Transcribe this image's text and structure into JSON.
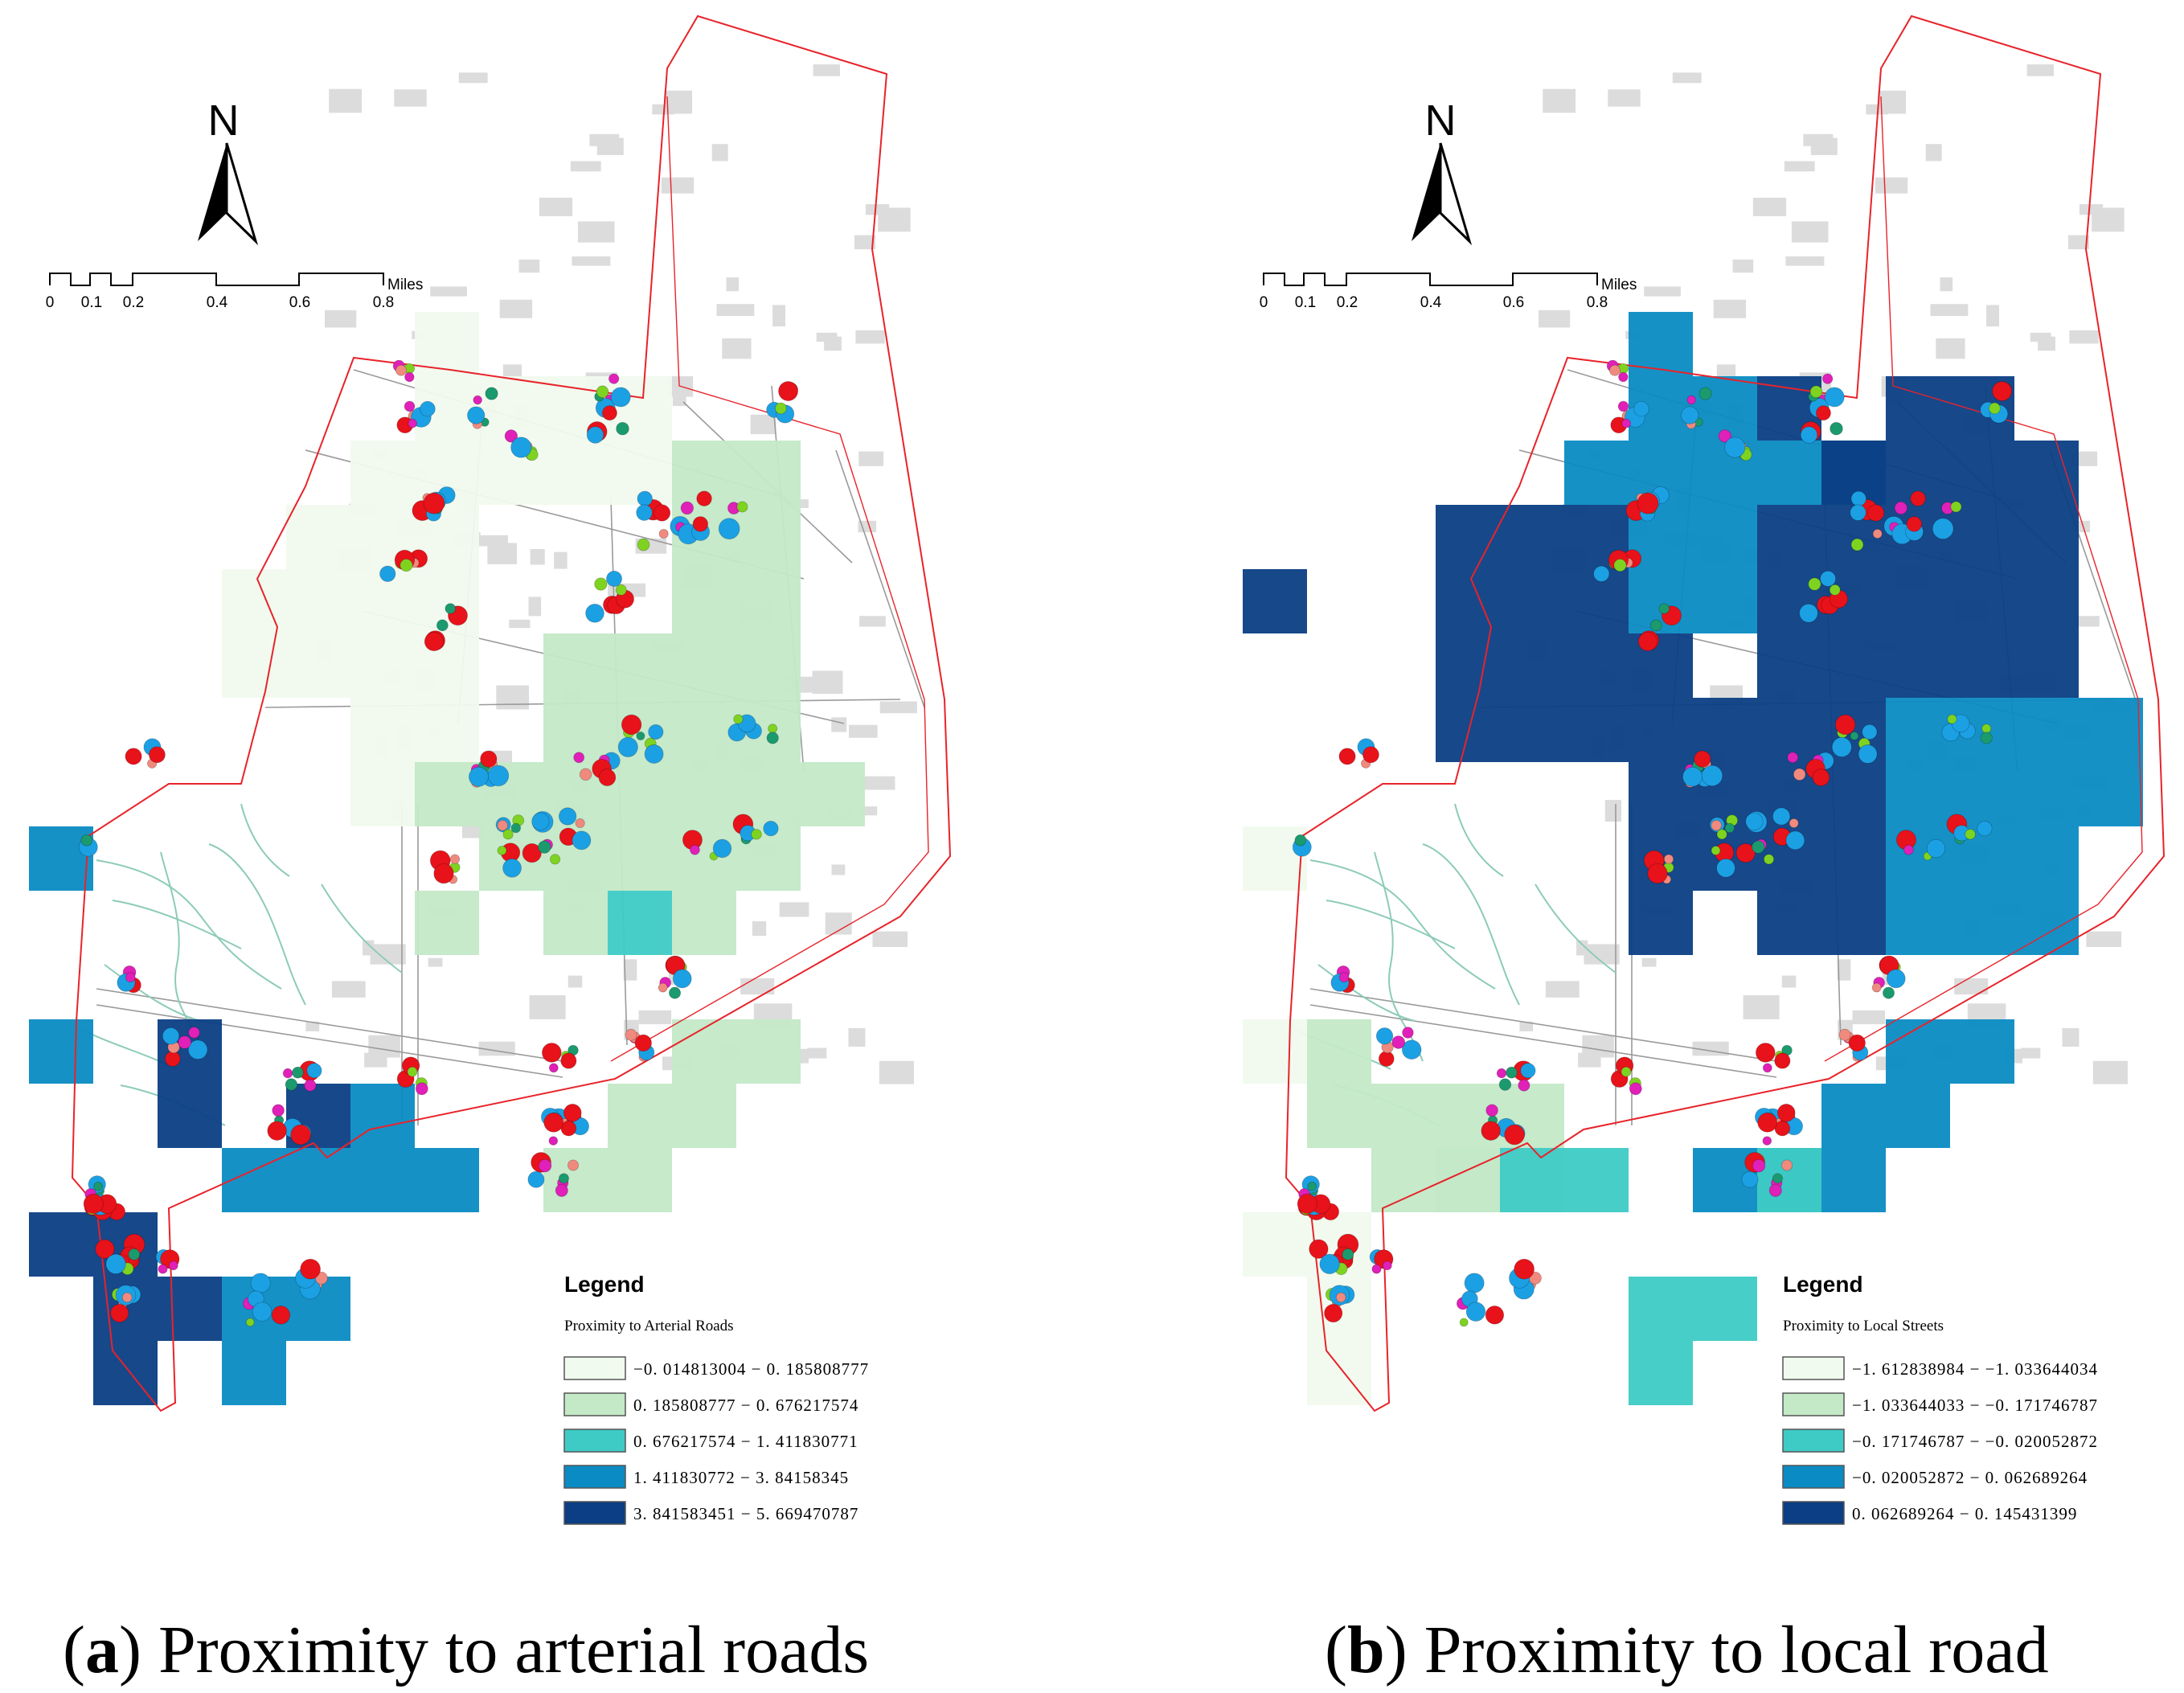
{
  "colors": {
    "class1": "#f1faee",
    "class2": "#c3e9c7",
    "class3": "#3ecbc5",
    "class4": "#0a8bc3",
    "class5": "#0b3e84",
    "boundary": "#e8232a",
    "street": "#9a9a9a",
    "building": "#dcdcdc",
    "path": "#8ccbb9",
    "point_red": "#e8121a",
    "point_blue": "#1ca0e4",
    "point_green": "#1b9a6e",
    "point_lime": "#7ed321",
    "point_pink": "#f08a7e",
    "point_magenta": "#e020b8"
  },
  "panels": [
    {
      "id": "a",
      "caption_letter": "a",
      "caption_text": "Proximity to arterial roads",
      "north_label": "N",
      "scale": {
        "ticks": [
          "0",
          "0.1",
          "0.2",
          "0.4",
          "0.6",
          "0.8"
        ],
        "unit": "Miles"
      },
      "legend": {
        "title": "Legend",
        "subtitle": "Proximity to Arterial Roads",
        "classes": [
          "−0. 014813004 − 0. 185808777",
          "0. 185808777 − 0. 676217574",
          "0. 676217574 − 1. 411830771",
          "1. 411830772 − 3. 84158345",
          "3. 841583451 − 5. 669470787"
        ]
      },
      "grid": [
        [
          6,
          5,
          1
        ],
        [
          7,
          6,
          1
        ],
        [
          7,
          7,
          1
        ],
        [
          8,
          6,
          1
        ],
        [
          8,
          7,
          1
        ],
        [
          9,
          6,
          1
        ],
        [
          9,
          7,
          1
        ],
        [
          6,
          6,
          1
        ],
        [
          6,
          7,
          1
        ],
        [
          5,
          7,
          1
        ],
        [
          5,
          8,
          1
        ],
        [
          4,
          8,
          1
        ],
        [
          4,
          9,
          1
        ],
        [
          4,
          10,
          1
        ],
        [
          3,
          9,
          1
        ],
        [
          3,
          10,
          1
        ],
        [
          5,
          9,
          1
        ],
        [
          5,
          10,
          1
        ],
        [
          5,
          11,
          1
        ],
        [
          6,
          8,
          1
        ],
        [
          6,
          9,
          1
        ],
        [
          6,
          10,
          1
        ],
        [
          6,
          11,
          1
        ],
        [
          5,
          12,
          1
        ],
        [
          6,
          12,
          2
        ],
        [
          7,
          12,
          2
        ],
        [
          10,
          7,
          2
        ],
        [
          11,
          7,
          2
        ],
        [
          10,
          8,
          2
        ],
        [
          11,
          8,
          2
        ],
        [
          10,
          9,
          2
        ],
        [
          11,
          9,
          2
        ],
        [
          10,
          10,
          2
        ],
        [
          11,
          10,
          2
        ],
        [
          10,
          11,
          2
        ],
        [
          11,
          11,
          2
        ],
        [
          10,
          12,
          2
        ],
        [
          11,
          12,
          2
        ],
        [
          12,
          12,
          2
        ],
        [
          8,
          10,
          2
        ],
        [
          9,
          10,
          2
        ],
        [
          8,
          11,
          2
        ],
        [
          9,
          11,
          2
        ],
        [
          8,
          12,
          2
        ],
        [
          9,
          12,
          2
        ],
        [
          7,
          13,
          2
        ],
        [
          8,
          13,
          2
        ],
        [
          9,
          13,
          2
        ],
        [
          10,
          13,
          2
        ],
        [
          11,
          13,
          2
        ],
        [
          6,
          14,
          2
        ],
        [
          8,
          14,
          2
        ],
        [
          10,
          14,
          2
        ],
        [
          10,
          16,
          2
        ],
        [
          11,
          16,
          2
        ],
        [
          9,
          17,
          2
        ],
        [
          10,
          17,
          2
        ],
        [
          8,
          18,
          2
        ],
        [
          9,
          18,
          2
        ],
        [
          9,
          14,
          3
        ],
        [
          0,
          13,
          4
        ],
        [
          0,
          16,
          4
        ],
        [
          5,
          17,
          4
        ],
        [
          3,
          18,
          4
        ],
        [
          4,
          18,
          4
        ],
        [
          5,
          18,
          4
        ],
        [
          6,
          18,
          4
        ],
        [
          3,
          20,
          4
        ],
        [
          4,
          20,
          4
        ],
        [
          3,
          21,
          4
        ],
        [
          2,
          16,
          5
        ],
        [
          2,
          17,
          5
        ],
        [
          4,
          17,
          5
        ],
        [
          0,
          19,
          5
        ],
        [
          1,
          19,
          5
        ],
        [
          1,
          20,
          5
        ],
        [
          2,
          20,
          5
        ],
        [
          1,
          21,
          5
        ]
      ]
    },
    {
      "id": "b",
      "caption_letter": "b",
      "caption_text": "Proximity to local road",
      "north_label": "N",
      "scale": {
        "ticks": [
          "0",
          "0.1",
          "0.2",
          "0.4",
          "0.6",
          "0.8"
        ],
        "unit": "Miles"
      },
      "legend": {
        "title": "Legend",
        "subtitle": "Proximity to Local Streets",
        "classes": [
          "−1. 612838984 − −1. 033644034",
          "−1. 033644033 − −0. 171746787",
          "−0. 171746787 − −0. 020052872",
          "−0. 020052872 − 0. 062689264",
          "0. 062689264 − 0. 145431399"
        ]
      },
      "grid": [
        [
          6,
          5,
          4
        ],
        [
          6,
          6,
          4
        ],
        [
          7,
          6,
          4
        ],
        [
          5,
          7,
          4
        ],
        [
          6,
          7,
          4
        ],
        [
          7,
          7,
          4
        ],
        [
          8,
          7,
          4
        ],
        [
          9,
          7,
          4
        ],
        [
          6,
          8,
          4
        ],
        [
          7,
          8,
          4
        ],
        [
          6,
          9,
          4
        ],
        [
          7,
          9,
          4
        ],
        [
          8,
          6,
          5
        ],
        [
          10,
          6,
          5
        ],
        [
          11,
          6,
          5
        ],
        [
          9,
          7,
          5
        ],
        [
          10,
          7,
          5
        ],
        [
          11,
          7,
          5
        ],
        [
          12,
          7,
          5
        ],
        [
          3,
          8,
          5
        ],
        [
          4,
          8,
          5
        ],
        [
          5,
          8,
          5
        ],
        [
          8,
          8,
          5
        ],
        [
          9,
          8,
          5
        ],
        [
          10,
          8,
          5
        ],
        [
          11,
          8,
          5
        ],
        [
          12,
          8,
          5
        ],
        [
          0,
          9,
          5
        ],
        [
          3,
          9,
          5
        ],
        [
          4,
          9,
          5
        ],
        [
          5,
          9,
          5
        ],
        [
          8,
          9,
          5
        ],
        [
          9,
          9,
          5
        ],
        [
          10,
          9,
          5
        ],
        [
          11,
          9,
          5
        ],
        [
          12,
          9,
          5
        ],
        [
          3,
          10,
          5
        ],
        [
          4,
          10,
          5
        ],
        [
          5,
          10,
          5
        ],
        [
          6,
          10,
          5
        ],
        [
          8,
          10,
          5
        ],
        [
          9,
          10,
          5
        ],
        [
          10,
          10,
          5
        ],
        [
          11,
          10,
          5
        ],
        [
          12,
          10,
          5
        ],
        [
          3,
          11,
          5
        ],
        [
          4,
          11,
          5
        ],
        [
          5,
          11,
          5
        ],
        [
          6,
          11,
          5
        ],
        [
          7,
          11,
          5
        ],
        [
          8,
          11,
          5
        ],
        [
          9,
          11,
          5
        ],
        [
          6,
          12,
          5
        ],
        [
          7,
          12,
          5
        ],
        [
          8,
          12,
          5
        ],
        [
          9,
          12,
          5
        ],
        [
          6,
          13,
          5
        ],
        [
          7,
          13,
          5
        ],
        [
          8,
          13,
          5
        ],
        [
          9,
          13,
          5
        ],
        [
          6,
          14,
          5
        ],
        [
          8,
          14,
          5
        ],
        [
          9,
          14,
          5
        ],
        [
          10,
          11,
          4
        ],
        [
          11,
          11,
          4
        ],
        [
          12,
          11,
          4
        ],
        [
          13,
          11,
          4
        ],
        [
          10,
          12,
          4
        ],
        [
          11,
          12,
          4
        ],
        [
          12,
          12,
          4
        ],
        [
          13,
          12,
          4
        ],
        [
          10,
          13,
          4
        ],
        [
          11,
          13,
          4
        ],
        [
          12,
          13,
          4
        ],
        [
          10,
          14,
          4
        ],
        [
          11,
          14,
          4
        ],
        [
          12,
          14,
          4
        ],
        [
          10,
          16,
          4
        ],
        [
          11,
          16,
          4
        ],
        [
          9,
          17,
          4
        ],
        [
          10,
          17,
          4
        ],
        [
          7,
          18,
          4
        ],
        [
          8,
          18,
          4
        ],
        [
          9,
          18,
          4
        ],
        [
          6,
          20,
          3
        ],
        [
          7,
          20,
          3
        ],
        [
          6,
          21,
          3
        ],
        [
          2,
          17,
          2
        ],
        [
          3,
          17,
          2
        ],
        [
          4,
          17,
          2
        ],
        [
          2,
          18,
          2
        ],
        [
          3,
          18,
          2
        ],
        [
          4,
          18,
          2
        ],
        [
          8,
          18,
          3
        ],
        [
          4,
          18,
          3
        ],
        [
          5,
          18,
          3
        ],
        [
          3,
          18,
          2
        ],
        [
          0,
          13,
          1
        ],
        [
          0,
          16,
          1
        ],
        [
          1,
          16,
          2
        ],
        [
          1,
          17,
          2
        ],
        [
          0,
          19,
          1
        ],
        [
          1,
          20,
          1
        ],
        [
          1,
          21,
          1
        ],
        [
          1,
          19,
          1
        ]
      ]
    }
  ]
}
